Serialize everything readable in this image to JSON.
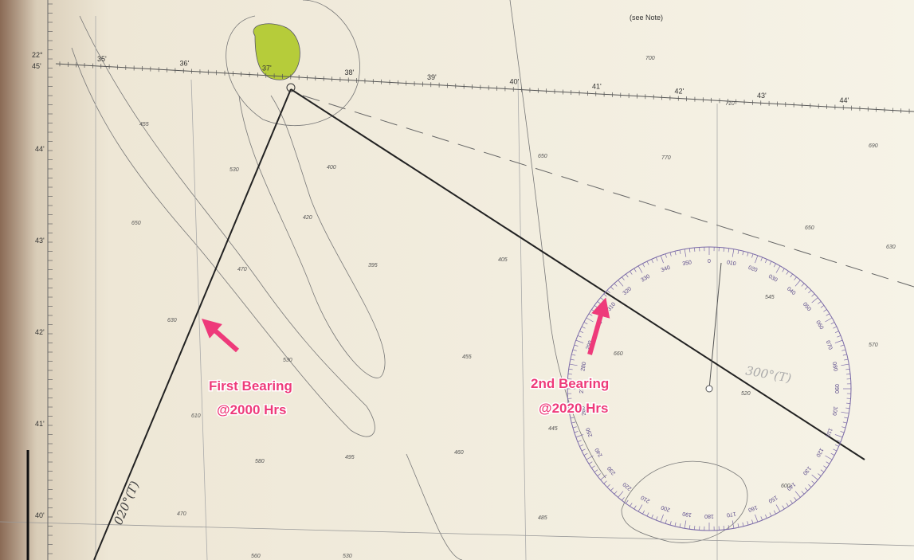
{
  "note": "(see Note)",
  "annotations": [
    [
      "First Bearing",
      "@2000 Hrs"
    ],
    [
      "2nd Bearing",
      "@2020 Hrs"
    ]
  ],
  "bearings": [
    "020°(T)",
    "300°(T)"
  ],
  "latitude_labels": [
    "22°",
    "45'",
    "44'",
    "43'",
    "42'",
    "41'",
    "40'"
  ],
  "longitude_labels": [
    "35'",
    "36'",
    "37'",
    "38'",
    "39'",
    "40'",
    "41'",
    "42'",
    "43'",
    "44'"
  ],
  "soundings": [
    "455",
    "530",
    "650",
    "630",
    "610",
    "470",
    "400",
    "420",
    "395",
    "405",
    "530",
    "455",
    "445",
    "460",
    "495",
    "485",
    "470",
    "580",
    "700",
    "770",
    "650",
    "690",
    "630",
    "570",
    "545",
    "520",
    "660",
    "600",
    "710",
    "650",
    "560",
    "530"
  ],
  "compass_labels": [
    "0",
    "010",
    "020",
    "030",
    "040",
    "050",
    "060",
    "070",
    "080",
    "090",
    "100",
    "110",
    "120",
    "130",
    "140",
    "150",
    "160",
    "170",
    "180",
    "190",
    "200",
    "210",
    "220",
    "230",
    "240",
    "250",
    "260",
    "270",
    "280",
    "290",
    "300",
    "310",
    "320",
    "330",
    "340",
    "350"
  ]
}
